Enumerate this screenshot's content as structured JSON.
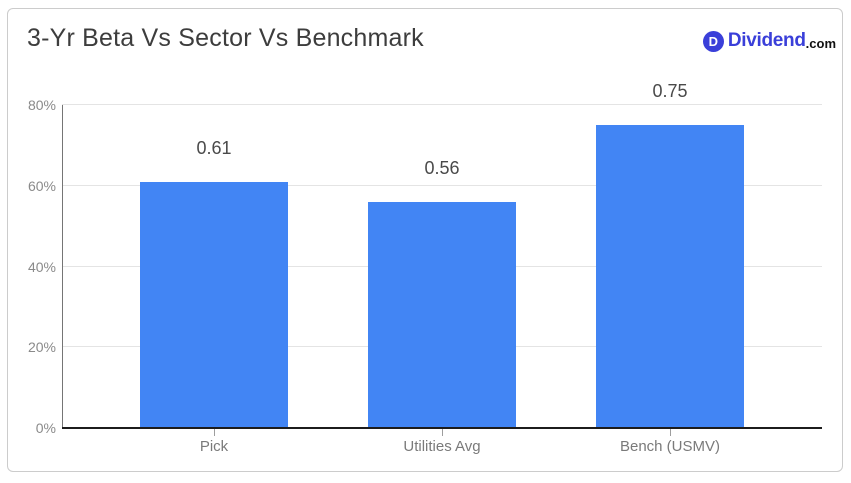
{
  "logo": {
    "d_letter": "D",
    "brand": "Dividend",
    "suffix": ".com",
    "brand_color": "#3a3fd9",
    "suffix_color": "#111111"
  },
  "colors": {
    "bar": "#4285f4",
    "axis": "#1c1c1c",
    "gridline": "#e4e4e4",
    "card_border": "#cccccc",
    "title_text": "#3d3d3d",
    "axis_label_text": "#8a8a8a"
  },
  "chart_data": {
    "type": "bar",
    "title": "3-Yr Beta Vs Sector Vs Benchmark",
    "categories": [
      "Pick",
      "Utilities Avg",
      "Bench (USMV)"
    ],
    "values": [
      0.61,
      0.56,
      0.75
    ],
    "value_labels": [
      "0.61",
      "0.56",
      "0.75"
    ],
    "xlabel": "",
    "ylabel": "",
    "ylim": [
      0,
      0.8
    ],
    "yticks": [
      {
        "value": 0.0,
        "label": "0%"
      },
      {
        "value": 0.2,
        "label": "20%"
      },
      {
        "value": 0.4,
        "label": "40%"
      },
      {
        "value": 0.6,
        "label": "60%"
      },
      {
        "value": 0.8,
        "label": "80%"
      }
    ],
    "bar_color": "#4285f4",
    "grid": true,
    "legend": "none"
  }
}
